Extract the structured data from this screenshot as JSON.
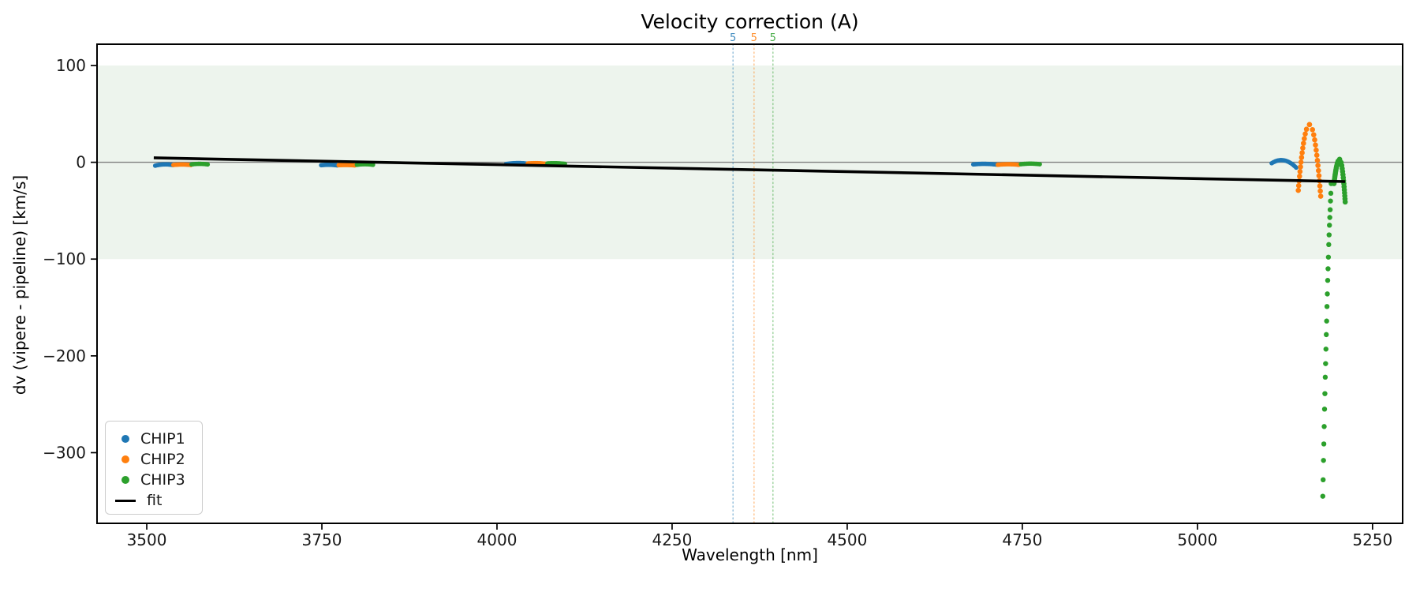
{
  "figure": {
    "title": "Velocity correction (A)",
    "xlabel": "Wavelength [nm]",
    "ylabel": "dv (vipere - pipeline) [km/s]"
  },
  "legend": {
    "items": [
      {
        "label": "CHIP1",
        "color": "#1f77b4",
        "marker": "dot"
      },
      {
        "label": "CHIP2",
        "color": "#ff7f0e",
        "marker": "dot"
      },
      {
        "label": "CHIP3",
        "color": "#2ca02c",
        "marker": "dot"
      },
      {
        "label": "fit",
        "color": "#000000",
        "marker": "line"
      }
    ]
  },
  "chart_data": {
    "type": "scatter",
    "title": "Velocity correction (A)",
    "xlabel": "Wavelength [nm]",
    "ylabel": "dv (vipere - pipeline) [km/s]",
    "xlim": [
      3429,
      5293
    ],
    "ylim": [
      -373,
      122
    ],
    "xticks": [
      3500,
      3750,
      4000,
      4250,
      4500,
      4750,
      5000,
      5250
    ],
    "yticks": [
      100,
      0,
      -100,
      -200,
      -300
    ],
    "grid": false,
    "legend_position": "lower left",
    "background_band": {
      "ymin": -100,
      "ymax": 100,
      "color": "#edf4ed"
    },
    "zero_line": {
      "y": 0,
      "color": "#808080"
    },
    "vlines": [
      {
        "x": 4337,
        "label": "5",
        "color": "#1f77b4"
      },
      {
        "x": 4367,
        "label": "5",
        "color": "#ff7f0e"
      },
      {
        "x": 4394,
        "label": "5",
        "color": "#2ca02c"
      }
    ],
    "fit_line": {
      "name": "fit",
      "color": "#000000",
      "x": [
        3510,
        5211
      ],
      "y": [
        4.6,
        -19.9
      ]
    },
    "series": [
      {
        "name": "CHIP1",
        "color": "#1f77b4",
        "segments": [
          {
            "wl": [
              3512,
              3537
            ],
            "dv": [
              -3.5,
              -2.2,
              -2.8
            ]
          },
          {
            "wl": [
              3749,
              3772
            ],
            "dv": [
              -3.0,
              -2.6,
              -3.2
            ]
          },
          {
            "wl": [
              4013,
              4043
            ],
            "dv": [
              -1.8,
              -0.8,
              -1.4
            ]
          },
          {
            "wl": [
              4680,
              4713
            ],
            "dv": [
              -2.2,
              -1.6,
              -2.4
            ]
          },
          {
            "wl": [
              5106,
              5141
            ],
            "dv": [
              -1.0,
              2.0,
              -5.5
            ]
          }
        ]
      },
      {
        "name": "CHIP2",
        "color": "#ff7f0e",
        "segments": [
          {
            "wl": [
              3538,
              3563
            ],
            "dv": [
              -2.8,
              -2.3,
              -2.8
            ]
          },
          {
            "wl": [
              3774,
              3797
            ],
            "dv": [
              -3.0,
              -2.8,
              -3.2
            ]
          },
          {
            "wl": [
              4044,
              4070
            ],
            "dv": [
              -1.2,
              -0.9,
              -1.5
            ]
          },
          {
            "wl": [
              4715,
              4745
            ],
            "dv": [
              -2.6,
              -2.0,
              -2.6
            ]
          }
        ],
        "spike": {
          "wl_center": 5160,
          "wl_halfwidth": 16,
          "dv_peak": 39,
          "dv_left_end": -29,
          "dv_right_end": -35
        }
      },
      {
        "name": "CHIP3",
        "color": "#2ca02c",
        "segments": [
          {
            "wl": [
              3564,
              3587
            ],
            "dv": [
              -2.2,
              -1.6,
              -2.2
            ]
          },
          {
            "wl": [
              3800,
              3823
            ],
            "dv": [
              -2.6,
              -2.0,
              -2.6
            ]
          },
          {
            "wl": [
              4072,
              4097
            ],
            "dv": [
              -1.2,
              -1.0,
              -1.6
            ]
          },
          {
            "wl": [
              4748,
              4775
            ],
            "dv": [
              -2.0,
              -1.4,
              -2.0
            ]
          }
        ],
        "spike": {
          "wl_center": 5203,
          "wl_halfwidth": 8,
          "dv_peak": 3,
          "dv_left_end": -22,
          "dv_right_end": -41
        },
        "deep_dip_points": [
          [
            5191.0,
            -22
          ],
          [
            5190.5,
            -32
          ],
          [
            5190.0,
            -40
          ],
          [
            5189.5,
            -49
          ],
          [
            5189.0,
            -57
          ],
          [
            5188.5,
            -65
          ],
          [
            5188.0,
            -75
          ],
          [
            5187.5,
            -85
          ],
          [
            5187.0,
            -98
          ],
          [
            5186.5,
            -110
          ],
          [
            5186.0,
            -122
          ],
          [
            5185.5,
            -136
          ],
          [
            5185.0,
            -149
          ],
          [
            5184.5,
            -164
          ],
          [
            5184.0,
            -178
          ],
          [
            5183.5,
            -193
          ],
          [
            5183.0,
            -208
          ],
          [
            5182.5,
            -222
          ],
          [
            5182.0,
            -239
          ],
          [
            5181.5,
            -255
          ],
          [
            5181.0,
            -273
          ],
          [
            5180.5,
            -291
          ],
          [
            5180.0,
            -308
          ],
          [
            5179.5,
            -328
          ],
          [
            5179.0,
            -345
          ]
        ]
      }
    ]
  }
}
